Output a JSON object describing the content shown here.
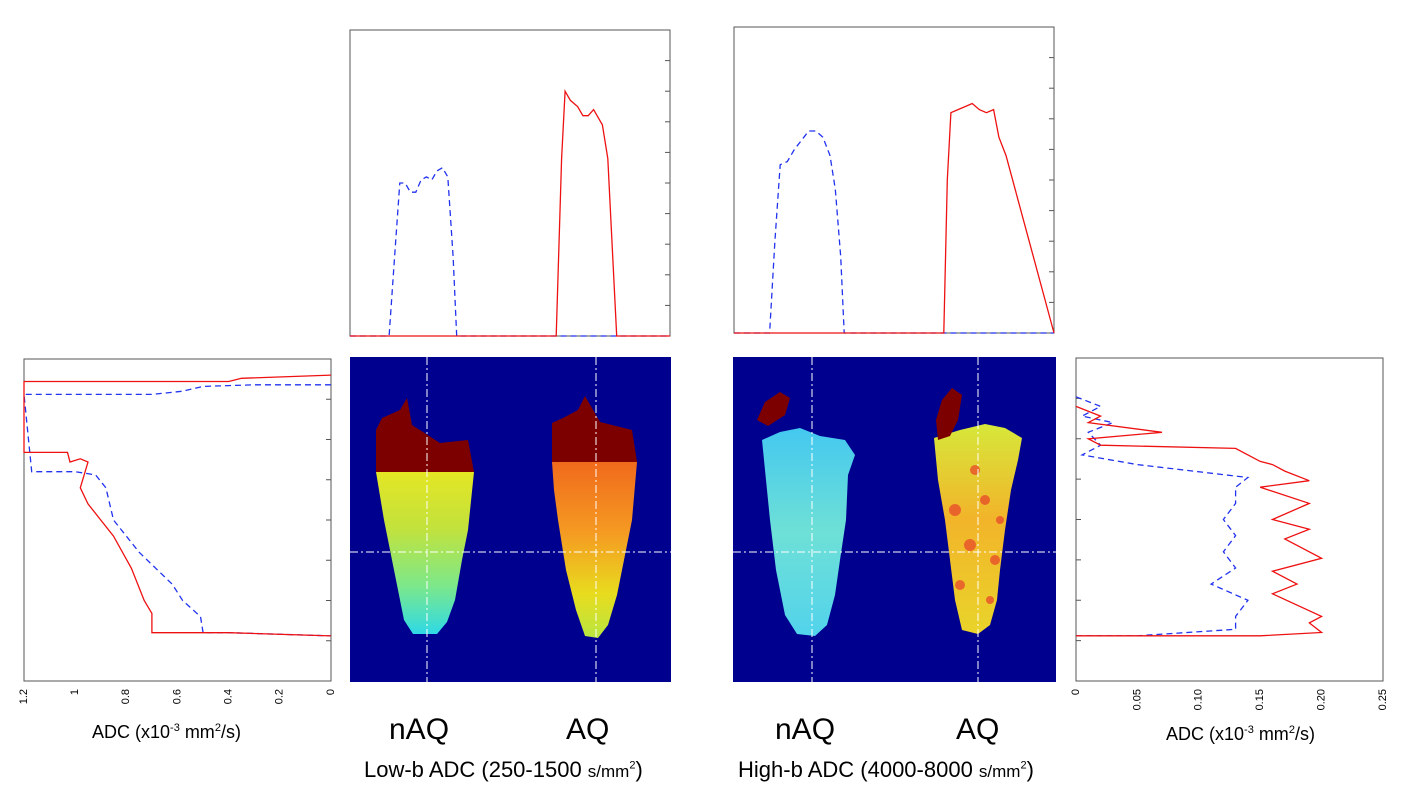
{
  "captions": {
    "low": {
      "prefix": "Low-b ADC (250-1500 ",
      "unit_pre": "s/mm",
      "unit_exp": "2",
      "suffix": ")"
    },
    "high": {
      "prefix": "High-b ADC (4000-8000 ",
      "unit_pre": "s/mm",
      "unit_exp": "2",
      "suffix": ")"
    }
  },
  "group_labels": {
    "low_left": "nAQ",
    "low_right": "AQ",
    "high_left": "nAQ",
    "high_right": "AQ"
  },
  "axis_labels": {
    "left": {
      "pre": "ADC (x10",
      "exp": "-3",
      "post": " mm",
      "exp2": "2",
      "end": "/s)"
    },
    "right": {
      "pre": "ADC (x10",
      "exp": "-3",
      "post": " mm",
      "exp2": "2",
      "end": "/s)"
    }
  },
  "colors": {
    "nAQ": "#2233ee",
    "AQ": "#ee1111",
    "map_bg": "#00008f"
  },
  "chart_data": [
    {
      "id": "low-b-top-histogram",
      "type": "line",
      "title": "",
      "x_range": [
        0,
        9
      ],
      "y_range": [
        0,
        1.0
      ],
      "series": [
        {
          "name": "nAQ",
          "style": "dashed",
          "x": [
            0,
            1.1,
            1.25,
            1.4,
            1.55,
            1.7,
            1.85,
            2.0,
            2.15,
            2.3,
            2.45,
            2.6,
            2.75,
            2.9,
            3.0,
            3.5,
            9
          ],
          "y": [
            0,
            0,
            0.25,
            0.5,
            0.5,
            0.47,
            0.47,
            0.51,
            0.52,
            0.51,
            0.54,
            0.55,
            0.52,
            0.26,
            0,
            0,
            0
          ]
        },
        {
          "name": "AQ",
          "style": "solid",
          "x": [
            0,
            5.8,
            5.95,
            6.05,
            6.2,
            6.4,
            6.55,
            6.7,
            6.85,
            6.95,
            7.1,
            7.25,
            7.5,
            9
          ],
          "y": [
            0,
            0,
            0.58,
            0.8,
            0.77,
            0.75,
            0.72,
            0.72,
            0.74,
            0.72,
            0.69,
            0.58,
            0,
            0
          ]
        }
      ]
    },
    {
      "id": "high-b-top-histogram",
      "type": "line",
      "title": "",
      "x_range": [
        0,
        9
      ],
      "y_range": [
        0,
        1.0
      ],
      "series": [
        {
          "name": "nAQ",
          "style": "dashed",
          "x": [
            0,
            1.0,
            1.15,
            1.3,
            1.5,
            1.7,
            1.9,
            2.1,
            2.3,
            2.5,
            2.7,
            2.85,
            3.0,
            3.1,
            9
          ],
          "y": [
            0,
            0,
            0.3,
            0.55,
            0.56,
            0.6,
            0.63,
            0.66,
            0.66,
            0.64,
            0.58,
            0.47,
            0.25,
            0,
            0
          ]
        },
        {
          "name": "AQ",
          "style": "solid",
          "x": [
            0,
            5.9,
            6.0,
            6.1,
            6.3,
            6.5,
            6.7,
            6.9,
            7.1,
            7.3,
            7.45,
            7.65,
            9
          ],
          "y": [
            0,
            0,
            0.5,
            0.72,
            0.73,
            0.74,
            0.75,
            0.73,
            0.72,
            0.73,
            0.64,
            0.58,
            0
          ]
        }
      ]
    },
    {
      "id": "left-side-histogram",
      "type": "line",
      "orientation": "vertical",
      "xlabel": "ADC (x10-3 mm2/s)",
      "x_reversed": true,
      "x_ticks": [
        1.2,
        1,
        0.8,
        0.6,
        0.4,
        0.2,
        0
      ],
      "x_range": [
        0,
        1.2
      ],
      "y_range": [
        0,
        1
      ],
      "series": [
        {
          "name": "nAQ",
          "style": "dashed",
          "points": [
            [
              0,
              0.92
            ],
            [
              0.3,
              0.92
            ],
            [
              0.5,
              0.915
            ],
            [
              0.58,
              0.9
            ],
            [
              0.7,
              0.89
            ],
            [
              1.0,
              0.89
            ],
            [
              1.17,
              0.89
            ],
            [
              1.2,
              0.89
            ],
            [
              1.17,
              0.65
            ],
            [
              1.0,
              0.65
            ],
            [
              0.92,
              0.64
            ],
            [
              0.88,
              0.6
            ],
            [
              0.85,
              0.5
            ],
            [
              0.75,
              0.4
            ],
            [
              0.62,
              0.3
            ],
            [
              0.58,
              0.25
            ],
            [
              0.51,
              0.2
            ],
            [
              0.5,
              0.15
            ],
            [
              0.4,
              0.15
            ],
            [
              0,
              0.14
            ]
          ]
        },
        {
          "name": "AQ",
          "style": "solid",
          "points": [
            [
              0,
              0.95
            ],
            [
              0.35,
              0.94
            ],
            [
              0.4,
              0.93
            ],
            [
              0.7,
              0.93
            ],
            [
              1.2,
              0.93
            ],
            [
              1.2,
              0.71
            ],
            [
              1.03,
              0.71
            ],
            [
              1.02,
              0.68
            ],
            [
              0.98,
              0.69
            ],
            [
              0.95,
              0.68
            ],
            [
              0.98,
              0.6
            ],
            [
              0.95,
              0.55
            ],
            [
              0.85,
              0.45
            ],
            [
              0.78,
              0.35
            ],
            [
              0.73,
              0.25
            ],
            [
              0.7,
              0.21
            ],
            [
              0.7,
              0.15
            ],
            [
              0.4,
              0.15
            ],
            [
              0,
              0.14
            ]
          ]
        }
      ]
    },
    {
      "id": "right-side-histogram",
      "type": "line",
      "orientation": "vertical",
      "xlabel": "ADC (x10-3 mm2/s)",
      "x_ticks": [
        "0",
        "0.05",
        "0.10",
        "0.15",
        "0.20",
        "0.25"
      ],
      "x_range": [
        0,
        0.25
      ],
      "y_range": [
        0,
        1
      ],
      "series": [
        {
          "name": "nAQ",
          "style": "dashed",
          "points": [
            [
              0,
              0.88
            ],
            [
              0.02,
              0.85
            ],
            [
              0.005,
              0.82
            ],
            [
              0.03,
              0.8
            ],
            [
              0.01,
              0.77
            ],
            [
              0.02,
              0.73
            ],
            [
              0.005,
              0.7
            ],
            [
              0.05,
              0.67
            ],
            [
              0.14,
              0.63
            ],
            [
              0.13,
              0.6
            ],
            [
              0.13,
              0.55
            ],
            [
              0.12,
              0.5
            ],
            [
              0.13,
              0.45
            ],
            [
              0.12,
              0.4
            ],
            [
              0.13,
              0.35
            ],
            [
              0.11,
              0.3
            ],
            [
              0.14,
              0.25
            ],
            [
              0.13,
              0.2
            ],
            [
              0.13,
              0.16
            ],
            [
              0.05,
              0.14
            ],
            [
              0,
              0.14
            ]
          ]
        },
        {
          "name": "AQ",
          "style": "solid",
          "points": [
            [
              0,
              0.85
            ],
            [
              0.02,
              0.82
            ],
            [
              0.01,
              0.8
            ],
            [
              0.07,
              0.77
            ],
            [
              0.01,
              0.75
            ],
            [
              0.02,
              0.73
            ],
            [
              0.13,
              0.72
            ],
            [
              0.15,
              0.68
            ],
            [
              0.16,
              0.67
            ],
            [
              0.17,
              0.65
            ],
            [
              0.19,
              0.62
            ],
            [
              0.15,
              0.6
            ],
            [
              0.19,
              0.55
            ],
            [
              0.16,
              0.5
            ],
            [
              0.19,
              0.47
            ],
            [
              0.17,
              0.44
            ],
            [
              0.2,
              0.38
            ],
            [
              0.16,
              0.34
            ],
            [
              0.18,
              0.3
            ],
            [
              0.16,
              0.27
            ],
            [
              0.2,
              0.2
            ],
            [
              0.19,
              0.18
            ],
            [
              0.2,
              0.15
            ],
            [
              0.15,
              0.14
            ],
            [
              0,
              0.14
            ]
          ]
        }
      ]
    }
  ]
}
